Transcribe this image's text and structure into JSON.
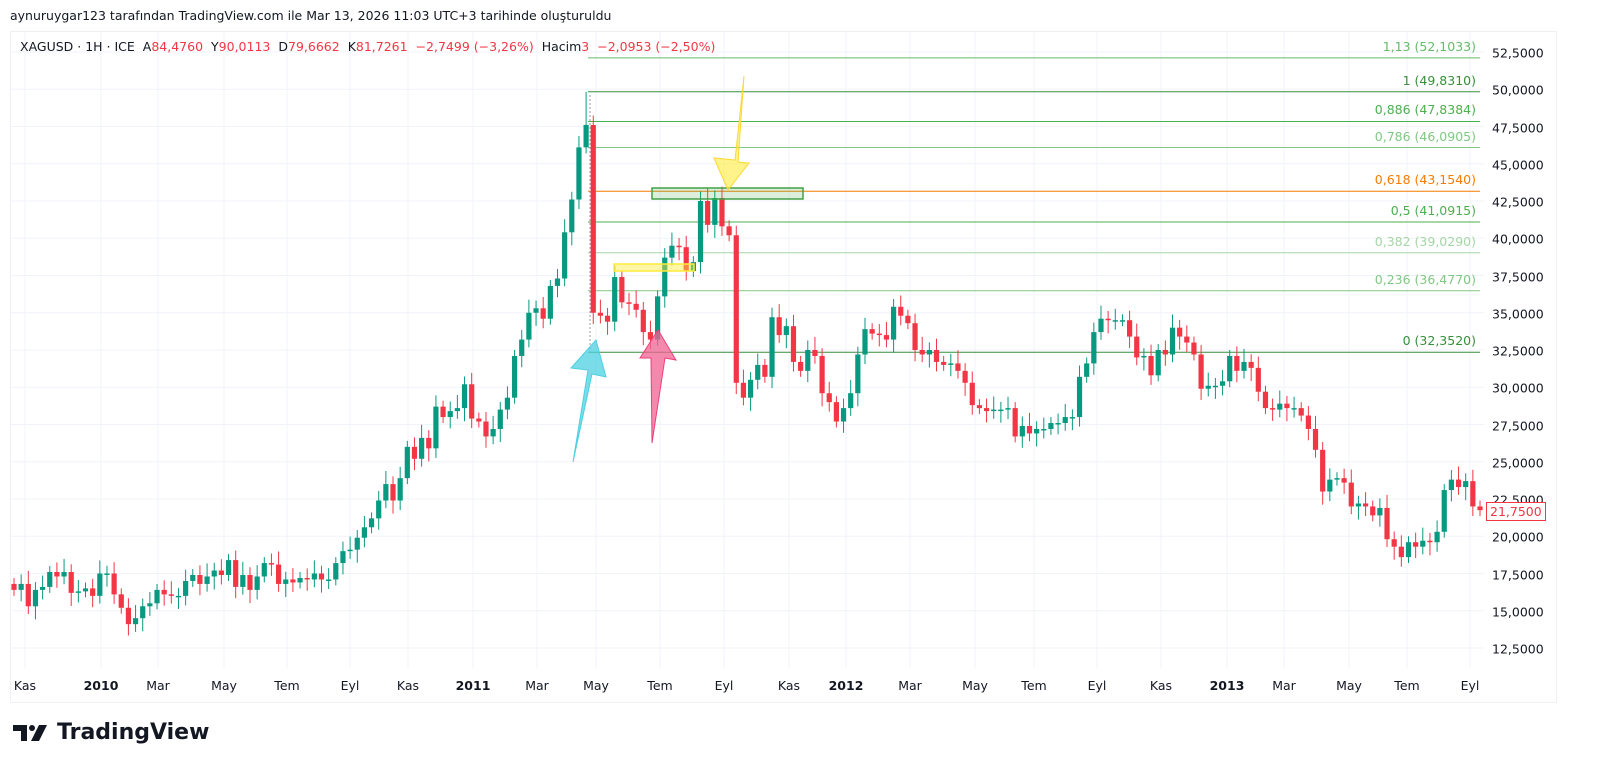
{
  "credit": "aynuruygar123 tarafından TradingView.com ile Mar 13, 2026 11:03 UTC+3 tarihinde oluşturuldu",
  "legend": {
    "symbol": "XAGUSD · 1H · ICE",
    "open_label": "A",
    "open": "84,4760",
    "high_label": "Y",
    "high": "90,0113",
    "low_label": "D",
    "low": "79,6662",
    "close_label": "K",
    "close": "81,7261",
    "change": "−2,7499 (−3,26%)",
    "volume_label": "Hacim",
    "volume": "3",
    "volume_change": "−2,0953 (−2,50%)"
  },
  "last_price": "21,7500",
  "brand": "TradingView",
  "colors": {
    "up": "#089981",
    "down": "#f23645",
    "grid": "#f0f3fa"
  },
  "chart_data": {
    "type": "candlestick",
    "symbol": "XAGUSD",
    "ylim": [
      11,
      54
    ],
    "y_ticks": [
      "52,5000",
      "50,0000",
      "47,5000",
      "45,0000",
      "42,5000",
      "40,0000",
      "37,5000",
      "35,0000",
      "32,5000",
      "30,0000",
      "27,5000",
      "25,0000",
      "22,5000",
      "20,0000",
      "17,5000",
      "15,0000",
      "12,5000"
    ],
    "y_tick_values": [
      52.5,
      50,
      47.5,
      45,
      42.5,
      40,
      37.5,
      35,
      32.5,
      30,
      27.5,
      25,
      22.5,
      20,
      17.5,
      15,
      12.5
    ],
    "x_ticks": [
      "Kas",
      "2010",
      "Mar",
      "May",
      "Tem",
      "Eyl",
      "Kas",
      "2011",
      "Mar",
      "May",
      "Tem",
      "Eyl",
      "Kas",
      "2012",
      "Mar",
      "May",
      "Tem",
      "Eyl",
      "Kas",
      "2013",
      "Mar",
      "May",
      "Tem",
      "Eyl"
    ],
    "first_open": 16.8,
    "closes": [
      16.4,
      16.8,
      15.3,
      16.4,
      16.6,
      17.6,
      17.3,
      17.6,
      16.2,
      16.3,
      16.5,
      16.0,
      17.5,
      17.5,
      16.1,
      15.2,
      14.1,
      14.5,
      15.3,
      15.5,
      16.4,
      16.1,
      16.0,
      16.0,
      17.0,
      17.4,
      16.8,
      17.3,
      17.7,
      17.4,
      18.4,
      16.6,
      17.4,
      16.4,
      17.3,
      18.2,
      18.1,
      16.8,
      17.1,
      16.9,
      17.2,
      17.1,
      17.5,
      17.1,
      17.1,
      18.2,
      19.0,
      19.1,
      19.9,
      20.6,
      21.2,
      22.4,
      23.5,
      22.4,
      23.9,
      26.0,
      25.2,
      26.6,
      25.9,
      28.7,
      28.0,
      28.4,
      28.6,
      30.2,
      27.9,
      27.7,
      26.7,
      27.2,
      28.5,
      29.3,
      32.1,
      33.2,
      35.0,
      35.3,
      34.6,
      36.8,
      37.3,
      40.4,
      42.6,
      46.1,
      47.6,
      35.0,
      34.8,
      34.4,
      37.4,
      35.7,
      35.6,
      35.2,
      33.7,
      33.2,
      36.1,
      38.7,
      39.5,
      39.4,
      37.8,
      38.4,
      42.5,
      40.9,
      42.7,
      40.8,
      40.2,
      30.3,
      29.3,
      30.5,
      31.5,
      30.7,
      34.7,
      33.5,
      34.1,
      31.7,
      31.1,
      32.5,
      32.1,
      29.6,
      29.0,
      27.7,
      28.6,
      29.6,
      32.2,
      33.9,
      33.6,
      33.5,
      33.2,
      35.4,
      34.8,
      34.3,
      32.5,
      32.2,
      32.5,
      31.7,
      31.5,
      31.6,
      31.1,
      30.3,
      28.8,
      28.6,
      28.4,
      28.5,
      28.5,
      28.6,
      26.7,
      27.4,
      26.9,
      27.2,
      27.2,
      27.6,
      27.6,
      28.0,
      28.0,
      30.7,
      31.6,
      33.7,
      34.6,
      34.5,
      34.5,
      34.5,
      33.4,
      32.0,
      32.1,
      30.8,
      32.5,
      32.2,
      34.0,
      33.4,
      33.0,
      32.2,
      29.9,
      30.1,
      30.1,
      30.4,
      32.1,
      31.1,
      31.7,
      31.3,
      29.7,
      28.6,
      28.5,
      28.9,
      28.6,
      28.6,
      28.1,
      27.2,
      25.8,
      23.0,
      23.8,
      23.9,
      23.6,
      22.0,
      22.2,
      22.0,
      21.4,
      21.9,
      19.8,
      19.3,
      18.6,
      19.6,
      19.3,
      19.7,
      19.6,
      20.3,
      23.1,
      23.8,
      23.3,
      23.7,
      22.0,
      21.75
    ],
    "fib_levels": [
      {
        "label": "1,13 (52,1033)",
        "value": 52.1033,
        "color": "#66bb6a"
      },
      {
        "label": "1 (49,8310)",
        "value": 49.831,
        "color": "#388e3c"
      },
      {
        "label": "0,886 (47,8384)",
        "value": 47.8384,
        "color": "#4caf50"
      },
      {
        "label": "0,786 (46,0905)",
        "value": 46.0905,
        "color": "#81c784"
      },
      {
        "label": "0,618 (43,1540)",
        "value": 43.154,
        "color": "#f57c00"
      },
      {
        "label": "0,5 (41,0915)",
        "value": 41.0915,
        "color": "#4caf50"
      },
      {
        "label": "0,382 (39,0290)",
        "value": 39.029,
        "color": "#a5d6a7"
      },
      {
        "label": "0,236 (36,4770)",
        "value": 36.477,
        "color": "#81c784"
      },
      {
        "label": "0 (32,3520)",
        "value": 32.352,
        "color": "#388e3c"
      }
    ]
  }
}
